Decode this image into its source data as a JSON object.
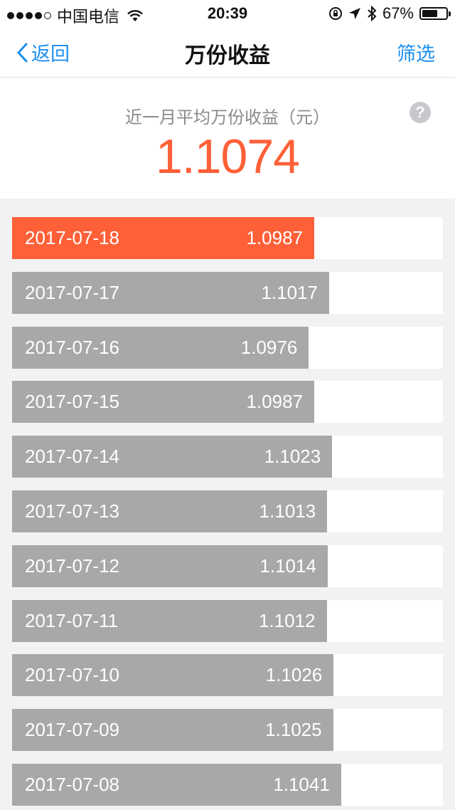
{
  "status_bar": {
    "carrier": "中国电信",
    "time": "20:39",
    "battery_percent_text": "67%",
    "battery_level": 0.67
  },
  "nav": {
    "back_label": "返回",
    "title": "万份收益",
    "filter_label": "筛选"
  },
  "summary": {
    "label": "近一月平均万份收益（元）",
    "value": "1.1074",
    "help_icon": "question-circle-icon"
  },
  "colors": {
    "accent": "#ff6038",
    "link": "#1b8ff0",
    "bar_inactive": "#a8a8a8"
  },
  "chart_data": {
    "type": "bar",
    "categories": [
      "2017-07-18",
      "2017-07-17",
      "2017-07-16",
      "2017-07-15",
      "2017-07-14",
      "2017-07-13",
      "2017-07-12",
      "2017-07-11",
      "2017-07-10",
      "2017-07-09",
      "2017-07-08"
    ],
    "values": [
      1.0987,
      1.1017,
      1.0976,
      1.0987,
      1.1023,
      1.1013,
      1.1014,
      1.1012,
      1.1026,
      1.1025,
      1.1041
    ],
    "value_labels": [
      "1.0987",
      "1.1017",
      "1.0976",
      "1.0987",
      "1.1023",
      "1.1013",
      "1.1014",
      "1.1012",
      "1.1026",
      "1.1025",
      "1.1041"
    ],
    "highlight_index": 0
  }
}
